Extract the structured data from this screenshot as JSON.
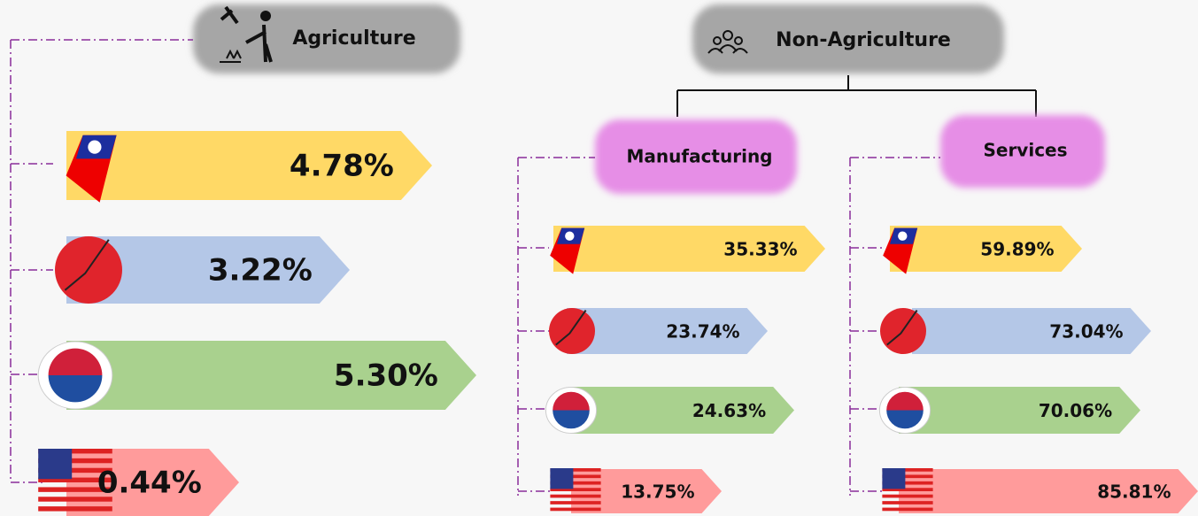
{
  "agriculture": {
    "title": "Agriculture",
    "items": [
      "4.78%",
      "3.22%",
      "5.30%",
      "0.44%"
    ]
  },
  "non_agriculture": {
    "title": "Non-Agriculture",
    "manufacturing": {
      "title": "Manufacturing",
      "items": [
        "35.33%",
        "23.74%",
        "24.63%",
        "13.75%"
      ]
    },
    "services": {
      "title": "Services",
      "items": [
        "59.89%",
        "73.04%",
        "70.06%",
        "85.81%"
      ]
    }
  }
}
